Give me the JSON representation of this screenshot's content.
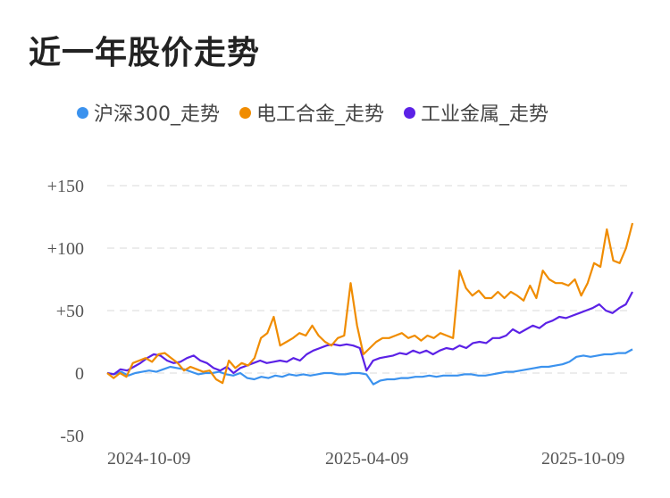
{
  "title": "近一年股价走势",
  "chart_data": {
    "type": "line",
    "title": "近一年股价走势",
    "xlabel": "",
    "ylabel": "",
    "x_ticks": [
      "2024-10-09",
      "2025-04-09",
      "2025-10-09"
    ],
    "y_ticks": [
      "+150",
      "+100",
      "+50",
      "0",
      "-50"
    ],
    "ylim": [
      -50,
      150
    ],
    "grid": true,
    "legend_position": "top",
    "series": [
      {
        "name": "沪深300_走势",
        "color": "#3b92ee",
        "values": [
          0,
          -1,
          1,
          -2,
          0,
          1,
          2,
          1,
          3,
          5,
          4,
          3,
          1,
          -1,
          0,
          0,
          1,
          -1,
          -2,
          0,
          -4,
          -5,
          -3,
          -4,
          -2,
          -3,
          -1,
          -2,
          -1,
          -2,
          -1,
          0,
          0,
          -1,
          -1,
          0,
          0,
          -1,
          -9,
          -6,
          -5,
          -5,
          -4,
          -4,
          -3,
          -3,
          -2,
          -3,
          -2,
          -2,
          -2,
          -1,
          -1,
          -2,
          -2,
          -1,
          0,
          1,
          1,
          2,
          3,
          4,
          5,
          5,
          6,
          7,
          9,
          13,
          14,
          13,
          14,
          15,
          15,
          16,
          16,
          19
        ]
      },
      {
        "name": "电工合金_走势",
        "color": "#f08c00",
        "values": [
          0,
          -4,
          0,
          -3,
          8,
          10,
          12,
          9,
          15,
          16,
          12,
          8,
          2,
          5,
          3,
          1,
          2,
          -5,
          -8,
          10,
          4,
          8,
          6,
          12,
          28,
          32,
          45,
          22,
          25,
          28,
          32,
          30,
          38,
          30,
          25,
          22,
          28,
          30,
          72,
          38,
          15,
          20,
          25,
          28,
          28,
          30,
          32,
          28,
          30,
          26,
          30,
          28,
          32,
          30,
          28,
          82,
          68,
          62,
          66,
          60,
          60,
          65,
          60,
          65,
          62,
          58,
          70,
          60,
          82,
          75,
          72,
          72,
          70,
          75,
          62,
          72,
          88,
          85,
          115,
          90,
          88,
          100,
          120
        ]
      },
      {
        "name": "工业金属_走势",
        "color": "#5b21e6",
        "values": [
          0,
          -1,
          3,
          2,
          5,
          8,
          12,
          15,
          14,
          10,
          8,
          9,
          12,
          14,
          10,
          8,
          4,
          2,
          5,
          0,
          4,
          6,
          8,
          10,
          8,
          9,
          10,
          9,
          12,
          10,
          15,
          18,
          20,
          22,
          23,
          22,
          23,
          22,
          20,
          2,
          10,
          12,
          13,
          14,
          16,
          15,
          18,
          16,
          18,
          15,
          18,
          20,
          19,
          22,
          20,
          24,
          25,
          24,
          28,
          28,
          30,
          35,
          32,
          35,
          38,
          36,
          40,
          42,
          45,
          44,
          46,
          48,
          50,
          52,
          55,
          50,
          48,
          52,
          55,
          65
        ]
      }
    ]
  }
}
